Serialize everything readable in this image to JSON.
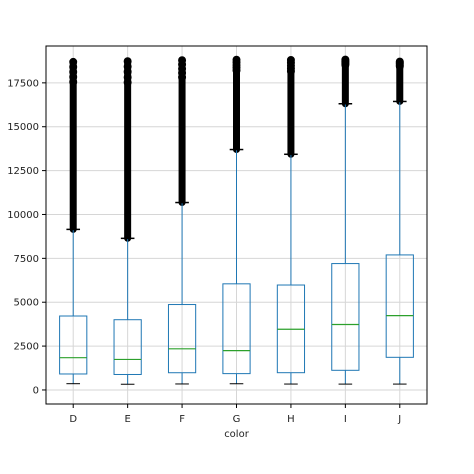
{
  "chart_data": {
    "type": "box",
    "title": "",
    "xlabel": "color",
    "ylabel": "",
    "ylim": [
      -800,
      19600
    ],
    "yticks": [
      0,
      2500,
      5000,
      7500,
      10000,
      12500,
      15000,
      17500
    ],
    "ytick_labels": [
      "0",
      "2500",
      "5000",
      "7500",
      "10000",
      "12500",
      "15000",
      "17500"
    ],
    "grid": true,
    "categories": [
      "D",
      "E",
      "F",
      "G",
      "H",
      "I",
      "J"
    ],
    "boxes": [
      {
        "category": "D",
        "whisker_low": 357,
        "q1": 911,
        "median": 1838,
        "q3": 4214,
        "whisker_high": 9150,
        "outliers_range": [
          9150,
          18693
        ]
      },
      {
        "category": "E",
        "whisker_low": 326,
        "q1": 882,
        "median": 1739,
        "q3": 4003,
        "whisker_high": 8640,
        "outliers_range": [
          8640,
          18731
        ]
      },
      {
        "category": "F",
        "whisker_low": 342,
        "q1": 982,
        "median": 2344,
        "q3": 4868,
        "whisker_high": 10680,
        "outliers_range": [
          10680,
          18791
        ]
      },
      {
        "category": "G",
        "whisker_low": 354,
        "q1": 931,
        "median": 2242,
        "q3": 6048,
        "whisker_high": 13700,
        "outliers_range": [
          13700,
          18818
        ]
      },
      {
        "category": "H",
        "whisker_low": 337,
        "q1": 984,
        "median": 3460,
        "q3": 5980,
        "whisker_high": 13430,
        "outliers_range": [
          13430,
          18803
        ]
      },
      {
        "category": "I",
        "whisker_low": 334,
        "q1": 1120,
        "median": 3730,
        "q3": 7202,
        "whisker_high": 16310,
        "outliers_range": [
          16310,
          18823
        ]
      },
      {
        "category": "J",
        "whisker_low": 335,
        "q1": 1860,
        "median": 4234,
        "q3": 7695,
        "whisker_high": 16440,
        "outliers_range": [
          16440,
          18710
        ]
      }
    ],
    "colors": {
      "box": "#1f77b4",
      "median": "#2ca02c",
      "outlier": "#000000",
      "grid": "#d6d6d6",
      "frame": "#000000"
    }
  }
}
